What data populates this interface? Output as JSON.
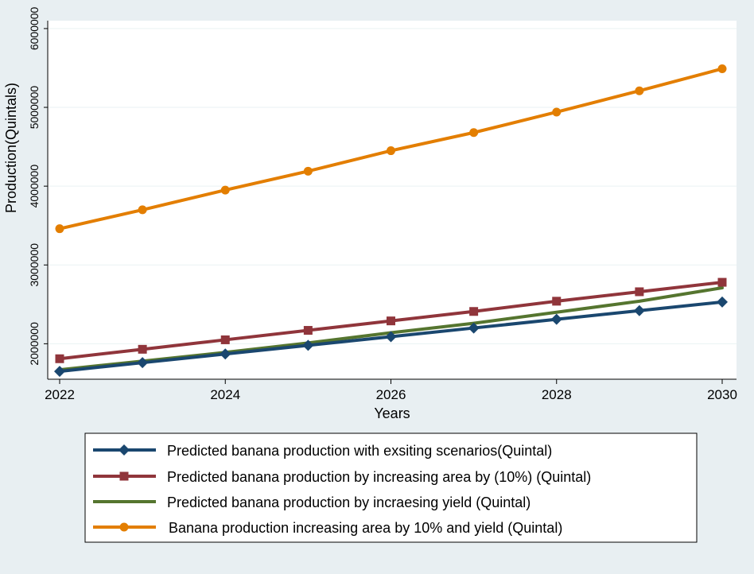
{
  "chart_data": {
    "type": "line",
    "title": "",
    "xlabel": "Years",
    "ylabel": "Production(Quintals)",
    "x": [
      2022,
      2023,
      2024,
      2025,
      2026,
      2027,
      2028,
      2029,
      2030
    ],
    "xticks": [
      "2022",
      "2024",
      "2026",
      "2028",
      "2030"
    ],
    "yticks": [
      "2000000",
      "3000000",
      "4000000",
      "5000000",
      "6000000"
    ],
    "ylim": [
      1550000,
      6100000
    ],
    "grid": true,
    "legend_position": "bottom",
    "series": [
      {
        "name": "Predicted banana production  with exsiting scenarios(Quintal)",
        "color": "#1a476f",
        "marker": "diamond",
        "values": [
          1650000,
          1760000,
          1870000,
          1980000,
          2090000,
          2200000,
          2310000,
          2420000,
          2530000
        ]
      },
      {
        "name": "Predicted banana production by increasing area by (10%) (Quintal)",
        "color": "#90353b",
        "marker": "square",
        "values": [
          1810000,
          1930000,
          2050000,
          2170000,
          2290000,
          2410000,
          2540000,
          2660000,
          2780000
        ]
      },
      {
        "name": "Predicted banana production by incraesing yield (Quintal)",
        "color": "#55752f",
        "marker": "none",
        "values": [
          1670000,
          1780000,
          1890000,
          2010000,
          2140000,
          2260000,
          2400000,
          2540000,
          2710000
        ]
      },
      {
        "name": "Banana production increasing area by 10% and yield (Quintal)",
        "color": "#e37e00",
        "marker": "circle",
        "values": [
          3460000,
          3700000,
          3950000,
          4190000,
          4450000,
          4680000,
          4940000,
          5210000,
          5490000
        ]
      }
    ]
  }
}
